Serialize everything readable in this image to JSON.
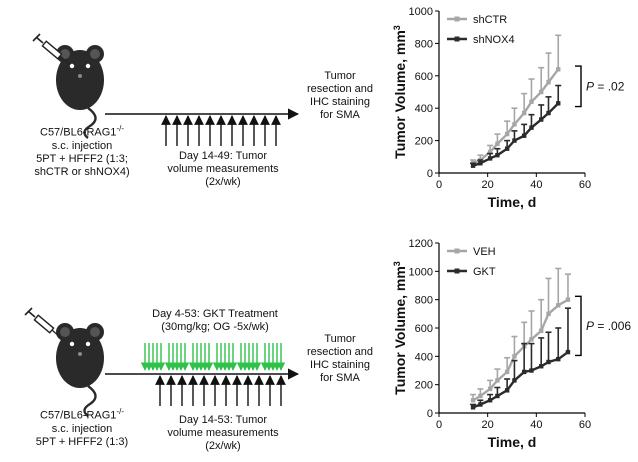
{
  "top": {
    "mouse_caption": [
      "C57/BL6-RAG1",
      "s.c. injection",
      "5PT + HFFF2 (1:3;",
      "shCTR or shNOX4)"
    ],
    "mouse_sup": "-/-",
    "outcome": [
      "Tumor",
      "resection and",
      "IHC staining",
      "for SMA"
    ],
    "measure_caption": [
      "Day 14-49: Tumor",
      "volume measurements",
      "(2x/wk)"
    ]
  },
  "bottom": {
    "mouse_caption": [
      "C57/BL6-RAG1",
      "s.c. injection",
      "5PT + HFFF2 (1:3)"
    ],
    "mouse_sup": "-/-",
    "treatment_caption": [
      "Day 4-53: GKT Treatment",
      "(30mg/kg; OG -5x/wk)"
    ],
    "outcome": [
      "Tumor",
      "resection and",
      "IHC staining",
      "for SMA"
    ],
    "measure_caption": [
      "Day 14-53: Tumor",
      "volume measurements",
      "(2x/wk)"
    ]
  },
  "colors": {
    "light": "#a6a6a6",
    "dark": "#2b2b2b",
    "green": "#2ec24a",
    "axis": "#000000"
  },
  "chart_data": [
    {
      "type": "line",
      "title": "",
      "xlabel": "Time, d",
      "ylabel": "Tumor Volume, mm",
      "ylabel_sup": "3",
      "xlim": [
        0,
        60
      ],
      "ylim": [
        0,
        1000
      ],
      "xticks": [
        0,
        20,
        40,
        60
      ],
      "yticks": [
        0,
        200,
        400,
        600,
        800,
        1000
      ],
      "legend": "top-left",
      "annotation": "P = .02",
      "annotation_prefix": "P",
      "annotation_value": " = .02",
      "series": [
        {
          "name": "shCTR",
          "color": "light",
          "x": [
            14,
            17,
            21,
            24,
            28,
            31,
            35,
            38,
            42,
            45,
            49
          ],
          "y": [
            60,
            80,
            130,
            180,
            240,
            300,
            370,
            440,
            500,
            560,
            640
          ],
          "err": [
            20,
            30,
            40,
            60,
            80,
            100,
            120,
            140,
            150,
            180,
            210
          ]
        },
        {
          "name": "shNOX4",
          "color": "dark",
          "x": [
            14,
            17,
            21,
            24,
            28,
            31,
            35,
            38,
            42,
            45,
            49
          ],
          "y": [
            45,
            60,
            90,
            110,
            150,
            200,
            230,
            280,
            330,
            370,
            430
          ],
          "err": [
            15,
            20,
            30,
            40,
            50,
            60,
            70,
            80,
            90,
            100,
            110
          ]
        }
      ]
    },
    {
      "type": "line",
      "title": "",
      "xlabel": "Time, d",
      "ylabel": "Tumor Volume, mm",
      "ylabel_sup": "3",
      "xlim": [
        0,
        60
      ],
      "ylim": [
        0,
        1200
      ],
      "xticks": [
        0,
        20,
        40,
        60
      ],
      "yticks": [
        0,
        200,
        400,
        600,
        800,
        1000,
        1200
      ],
      "legend": "top-left",
      "annotation": "P = .006",
      "annotation_prefix": "P",
      "annotation_value": " = .006",
      "series": [
        {
          "name": "VEH",
          "color": "light",
          "x": [
            14,
            17,
            21,
            24,
            28,
            31,
            35,
            38,
            42,
            45,
            49,
            53
          ],
          "y": [
            90,
            120,
            170,
            230,
            290,
            400,
            470,
            520,
            580,
            700,
            760,
            800
          ],
          "err": [
            40,
            50,
            60,
            80,
            100,
            140,
            170,
            200,
            220,
            250,
            260,
            180
          ]
        },
        {
          "name": "GKT",
          "color": "dark",
          "x": [
            14,
            17,
            21,
            24,
            28,
            31,
            35,
            38,
            42,
            45,
            49,
            53
          ],
          "y": [
            40,
            60,
            90,
            120,
            160,
            230,
            290,
            300,
            330,
            360,
            380,
            430
          ],
          "err": [
            20,
            30,
            40,
            60,
            80,
            140,
            200,
            190,
            200,
            210,
            220,
            310
          ]
        }
      ]
    }
  ]
}
